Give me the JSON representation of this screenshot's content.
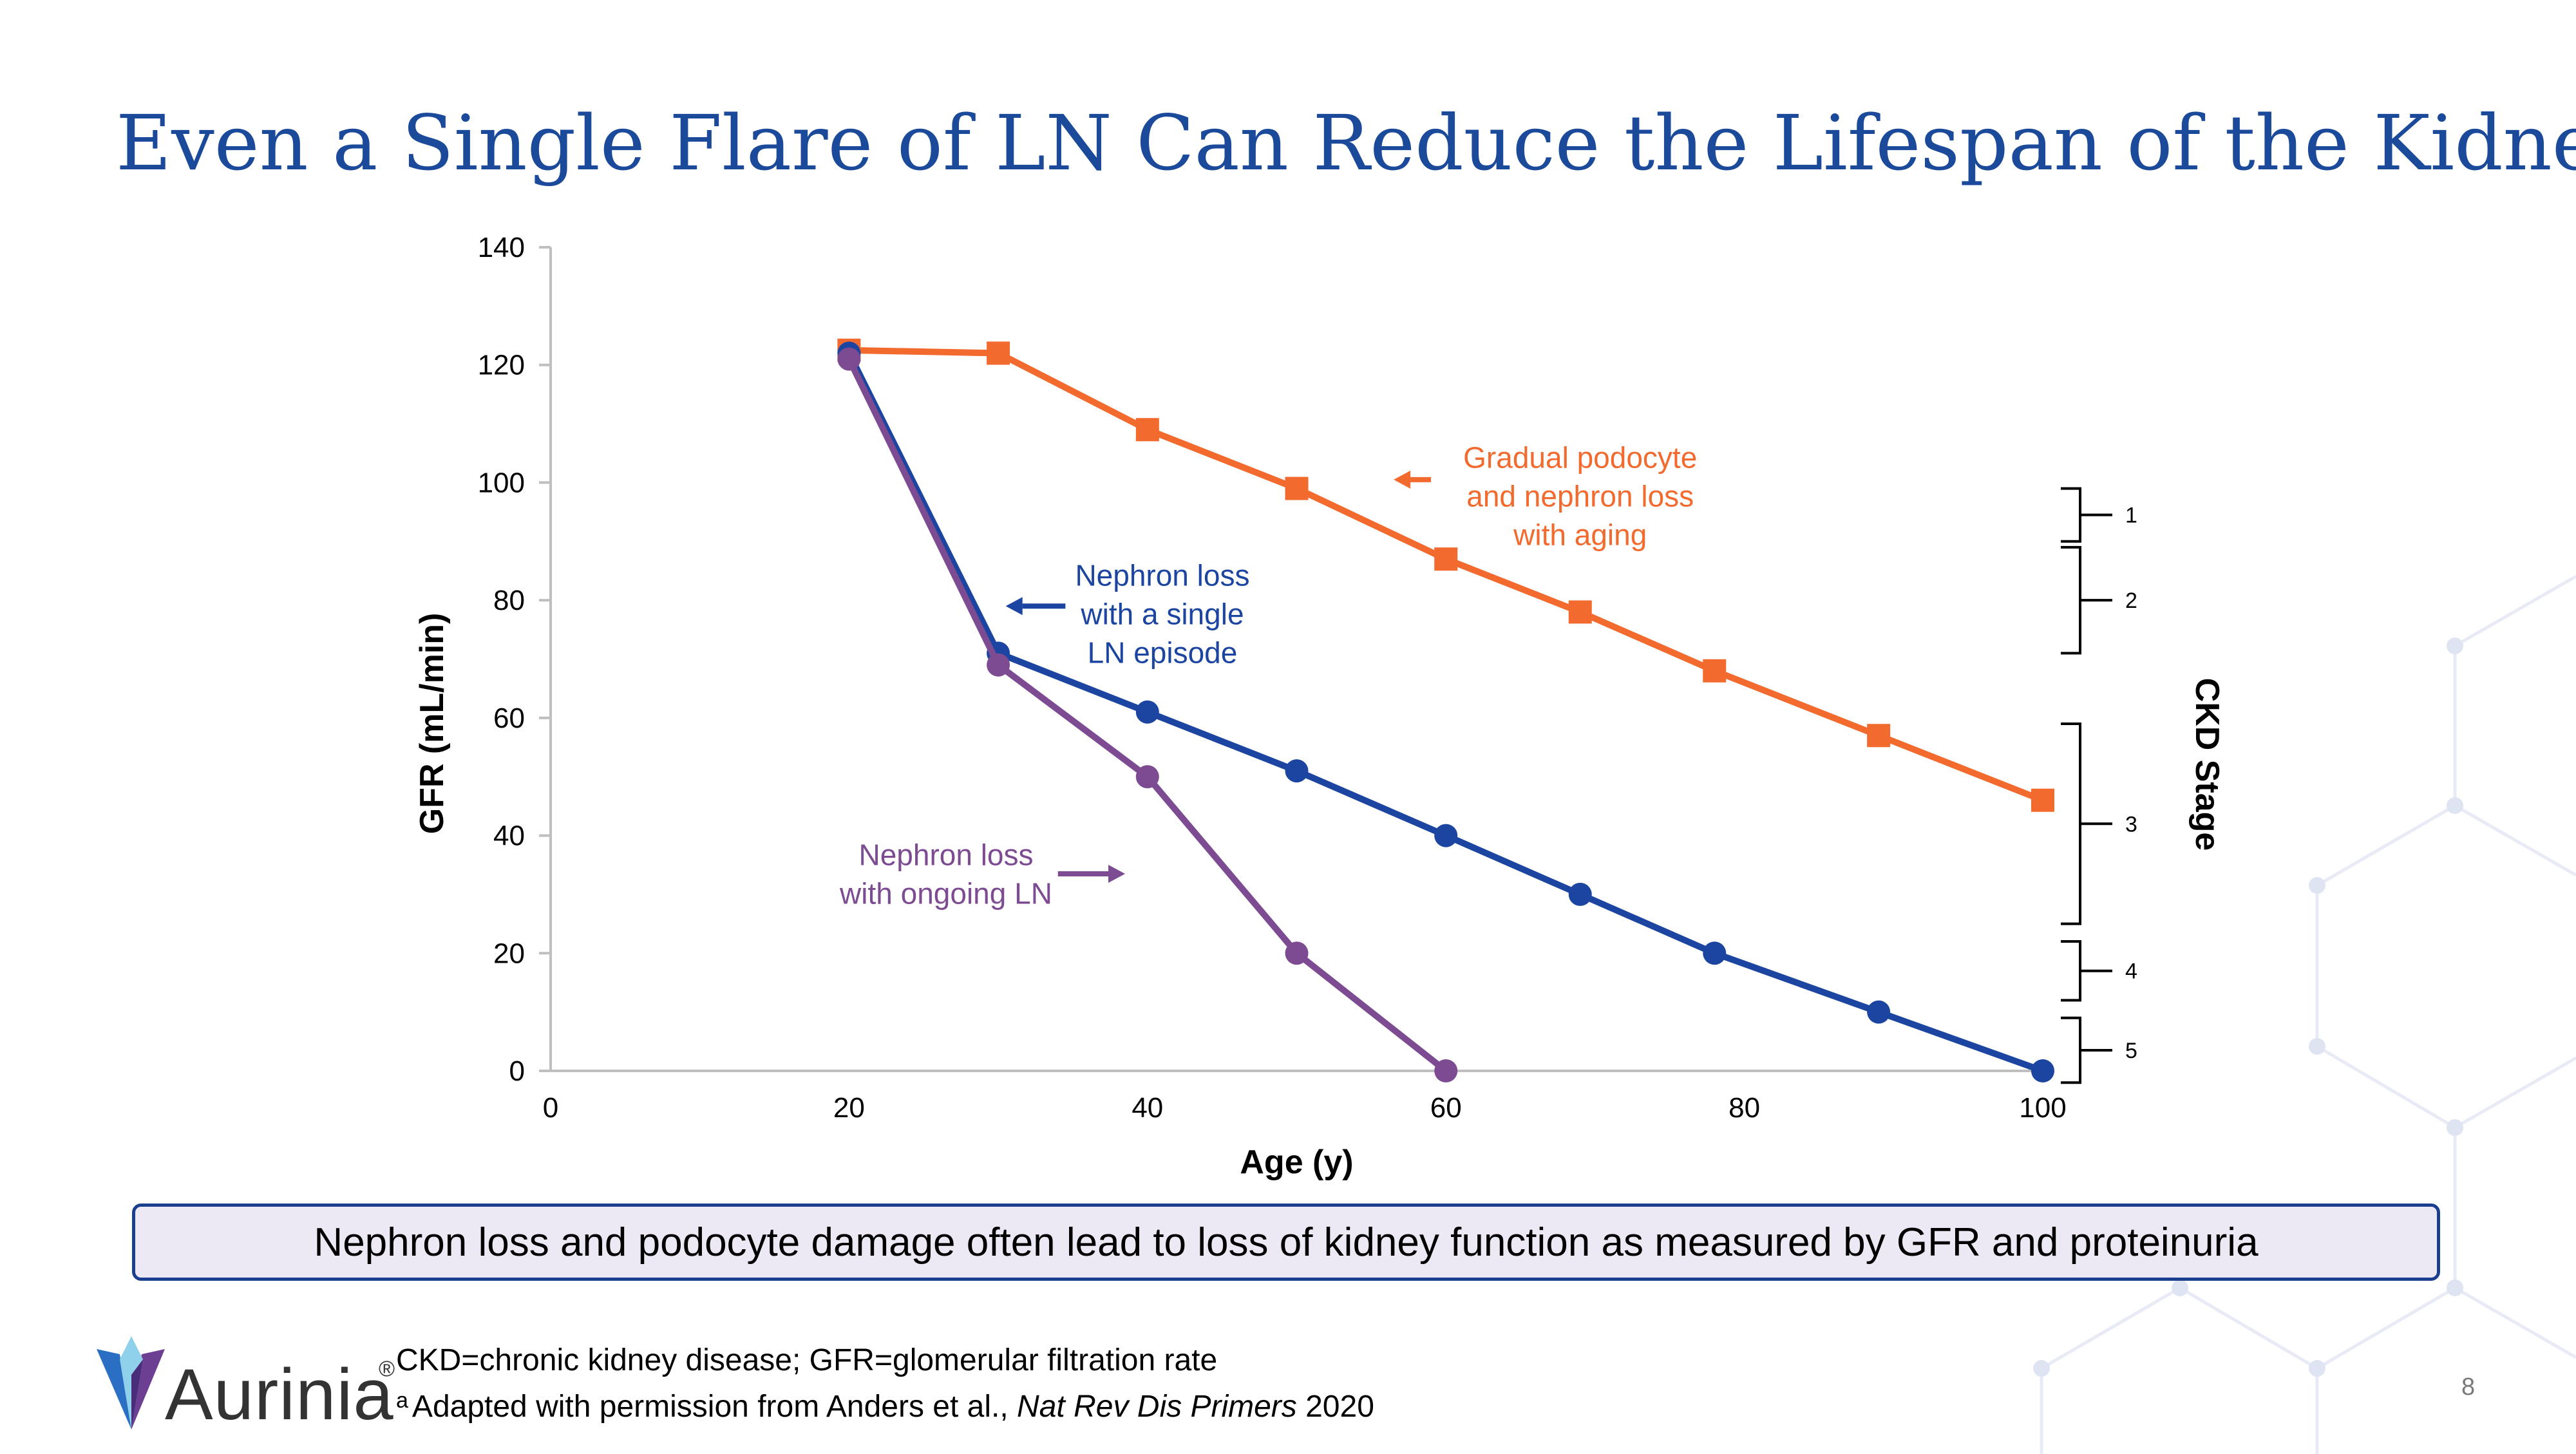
{
  "slide": {
    "title": "Even a Single Flare of LN Can Reduce the Lifespan of the Kidney",
    "title_sup": "a",
    "takeaway": "Nephron loss and podocyte damage often lead to loss of kidney function as measured by GFR and proteinuria",
    "footnote_line1": "CKD=chronic kidney disease; GFR=glomerular filtration rate",
    "footnote_sup": "a",
    "footnote_line2_prefix": "Adapted with permission from Anders et al., ",
    "footnote_line2_journal": "Nat Rev Dis Primers",
    "footnote_line2_year": " 2020",
    "logo_text": "Aurinia",
    "logo_reg": "®",
    "page_number": "8"
  },
  "chart_data": {
    "type": "line",
    "xlabel": "Age (y)",
    "ylabel": "GFR (mL/min)",
    "y2label": "CKD Stage",
    "xlim": [
      0,
      100
    ],
    "ylim": [
      0,
      140
    ],
    "xticks": [
      0,
      20,
      40,
      60,
      80,
      100
    ],
    "yticks": [
      0,
      20,
      40,
      60,
      80,
      100,
      120,
      140
    ],
    "grid": false,
    "series": [
      {
        "key": "aging",
        "color": "#f26a2e",
        "marker": "square",
        "points": [
          [
            20,
            122.5
          ],
          [
            30,
            122
          ],
          [
            40,
            109
          ],
          [
            50,
            99
          ],
          [
            60,
            87
          ],
          [
            69,
            78
          ],
          [
            78,
            68
          ],
          [
            89,
            57
          ],
          [
            100,
            46
          ]
        ]
      },
      {
        "key": "single",
        "color": "#1b45a0",
        "marker": "circle",
        "points": [
          [
            20,
            122
          ],
          [
            30,
            71
          ],
          [
            40,
            61
          ],
          [
            50,
            51
          ],
          [
            60,
            40
          ],
          [
            69,
            30
          ],
          [
            78,
            20
          ],
          [
            89,
            10
          ],
          [
            100,
            0
          ]
        ]
      },
      {
        "key": "ongoing",
        "color": "#7d4b91",
        "marker": "circle",
        "points": [
          [
            20,
            121
          ],
          [
            30,
            69
          ],
          [
            40,
            50
          ],
          [
            50,
            20
          ],
          [
            60,
            0
          ]
        ]
      }
    ],
    "annotations": [
      {
        "key": "aging",
        "color": "#f26a2e",
        "lines": [
          "Gradual podocyte",
          "and nephron loss",
          "with aging"
        ],
        "text_x": 69,
        "text_y": 102.5,
        "anchor": "middle",
        "arrow": {
          "from_x": 59,
          "to_x": 56.5,
          "y": 100.5
        }
      },
      {
        "key": "single",
        "color": "#1b45a0",
        "lines": [
          "Nephron loss",
          "with a single",
          "LN episode"
        ],
        "text_x": 41,
        "text_y": 82.5,
        "anchor": "middle",
        "arrow": {
          "from_x": 34.5,
          "to_x": 30.5,
          "y": 79
        }
      },
      {
        "key": "ongoing",
        "color": "#7d4b91",
        "lines": [
          "Nephron loss",
          "with ongoing LN"
        ],
        "text_x": 26.5,
        "text_y": 35,
        "anchor": "middle",
        "arrow": {
          "from_x": 34,
          "to_x": 38.5,
          "y": 33.5
        }
      }
    ],
    "ckd_stages": [
      {
        "label": "1",
        "y_min": 90,
        "y_max": 99
      },
      {
        "label": "2",
        "y_min": 71,
        "y_max": 89
      },
      {
        "label": "3",
        "y_min": 25,
        "y_max": 59
      },
      {
        "label": "4",
        "y_min": 12,
        "y_max": 22
      },
      {
        "label": "5",
        "y_min": -2,
        "y_max": 9
      }
    ]
  }
}
